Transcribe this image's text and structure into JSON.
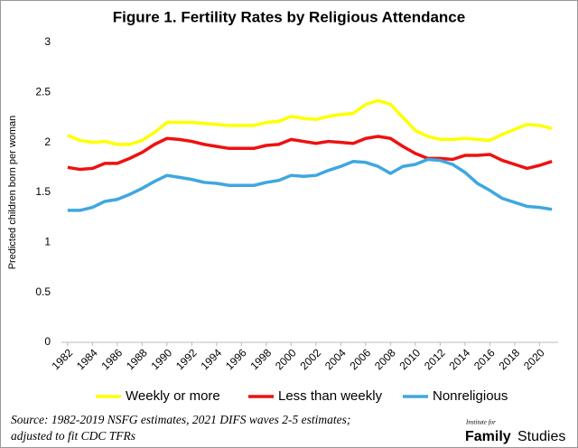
{
  "chart_data": {
    "type": "line",
    "title": "Figure 1. Fertility Rates by Religious Attendance",
    "y_label": "Predicted children born per woman",
    "x": [
      1982,
      1983,
      1984,
      1985,
      1986,
      1987,
      1988,
      1989,
      1990,
      1991,
      1992,
      1993,
      1994,
      1995,
      1996,
      1997,
      1998,
      1999,
      2000,
      2001,
      2002,
      2003,
      2004,
      2005,
      2006,
      2007,
      2008,
      2009,
      2010,
      2011,
      2012,
      2013,
      2014,
      2015,
      2016,
      2017,
      2018,
      2019,
      2020,
      2021
    ],
    "series": [
      {
        "name": "Weekly or more",
        "color": "#ffff00",
        "values": [
          2.07,
          2.02,
          2.0,
          2.01,
          1.98,
          1.98,
          2.02,
          2.1,
          2.2,
          2.2,
          2.2,
          2.19,
          2.18,
          2.17,
          2.17,
          2.17,
          2.2,
          2.21,
          2.26,
          2.24,
          2.23,
          2.26,
          2.28,
          2.29,
          2.38,
          2.42,
          2.38,
          2.25,
          2.12,
          2.06,
          2.03,
          2.03,
          2.04,
          2.03,
          2.02,
          2.08,
          2.13,
          2.18,
          2.17,
          2.14
        ]
      },
      {
        "name": "Less than weekly",
        "color": "#ee1111",
        "values": [
          1.75,
          1.73,
          1.74,
          1.79,
          1.79,
          1.84,
          1.9,
          1.98,
          2.04,
          2.03,
          2.01,
          1.98,
          1.96,
          1.94,
          1.94,
          1.94,
          1.97,
          1.98,
          2.03,
          2.01,
          1.99,
          2.01,
          2.0,
          1.99,
          2.04,
          2.06,
          2.04,
          1.96,
          1.89,
          1.84,
          1.84,
          1.83,
          1.87,
          1.87,
          1.88,
          1.82,
          1.78,
          1.74,
          1.77,
          1.81
        ]
      },
      {
        "name": "Nonreligious",
        "color": "#3fa7e0",
        "values": [
          1.32,
          1.32,
          1.35,
          1.41,
          1.43,
          1.48,
          1.54,
          1.61,
          1.67,
          1.65,
          1.63,
          1.6,
          1.59,
          1.57,
          1.57,
          1.57,
          1.6,
          1.62,
          1.67,
          1.66,
          1.67,
          1.72,
          1.76,
          1.81,
          1.8,
          1.76,
          1.69,
          1.76,
          1.78,
          1.83,
          1.82,
          1.78,
          1.7,
          1.59,
          1.52,
          1.44,
          1.4,
          1.36,
          1.35,
          1.33
        ]
      }
    ],
    "xlim": [
      1981.5,
      2021.5
    ],
    "xticks": [
      1982,
      1984,
      1986,
      1988,
      1990,
      1992,
      1994,
      1996,
      1998,
      2000,
      2002,
      2004,
      2006,
      2008,
      2010,
      2012,
      2014,
      2016,
      2018,
      2020
    ],
    "ylim": [
      0,
      3
    ],
    "yticks": [
      0,
      0.5,
      1,
      1.5,
      2,
      2.5,
      3
    ],
    "grid": false,
    "source": [
      "Source: 1982-2019 NSFG estimates, 2021 DIFS waves 2-5 estimates;",
      "adjusted to fit CDC TFRs"
    ],
    "logo": {
      "small": "Institute for",
      "name1": "Family",
      "name2": "Studies"
    }
  }
}
